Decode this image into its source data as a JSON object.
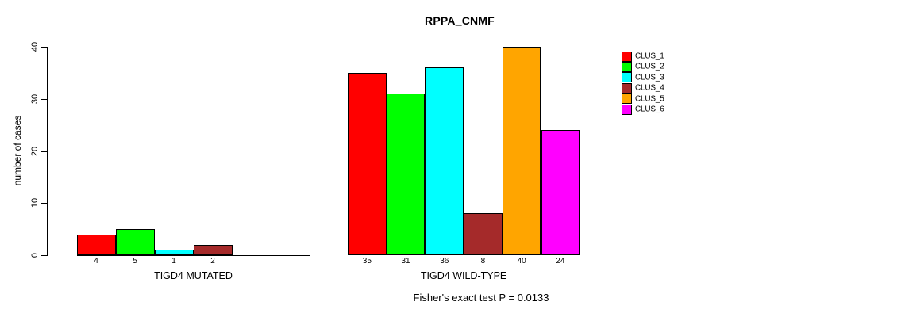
{
  "chart_data": {
    "type": "bar",
    "title": "RPPA_CNMF",
    "ylabel": "number of cases",
    "xlabel": "",
    "ylim": [
      0,
      40
    ],
    "yticks": [
      0,
      10,
      20,
      30,
      40
    ],
    "grid": false,
    "legend_position": "right",
    "categories": [
      "CLUS_1",
      "CLUS_2",
      "CLUS_3",
      "CLUS_4",
      "CLUS_5",
      "CLUS_6"
    ],
    "series_colors": [
      "#FF0000",
      "#00FF00",
      "#00FFFF",
      "#A52A2A",
      "#FFA500",
      "#FF00FF"
    ],
    "groups": [
      {
        "label": "TIGD4 MUTATED",
        "values": [
          4,
          5,
          1,
          2,
          0,
          0
        ],
        "bar_labels": [
          "4",
          "5",
          "1",
          "2",
          "",
          ""
        ]
      },
      {
        "label": "TIGD4 WILD-TYPE",
        "values": [
          35,
          31,
          36,
          8,
          40,
          24
        ],
        "bar_labels": [
          "35",
          "31",
          "36",
          "8",
          "40",
          "24"
        ]
      }
    ],
    "legend": [
      {
        "label": "CLUS_1",
        "color": "#FF0000"
      },
      {
        "label": "CLUS_2",
        "color": "#00FF00"
      },
      {
        "label": "CLUS_3",
        "color": "#00FFFF"
      },
      {
        "label": "CLUS_4",
        "color": "#A52A2A"
      },
      {
        "label": "CLUS_5",
        "color": "#FFA500"
      },
      {
        "label": "CLUS_6",
        "color": "#FF00FF"
      }
    ],
    "footnote": "Fisher's exact test P = 0.0133"
  }
}
